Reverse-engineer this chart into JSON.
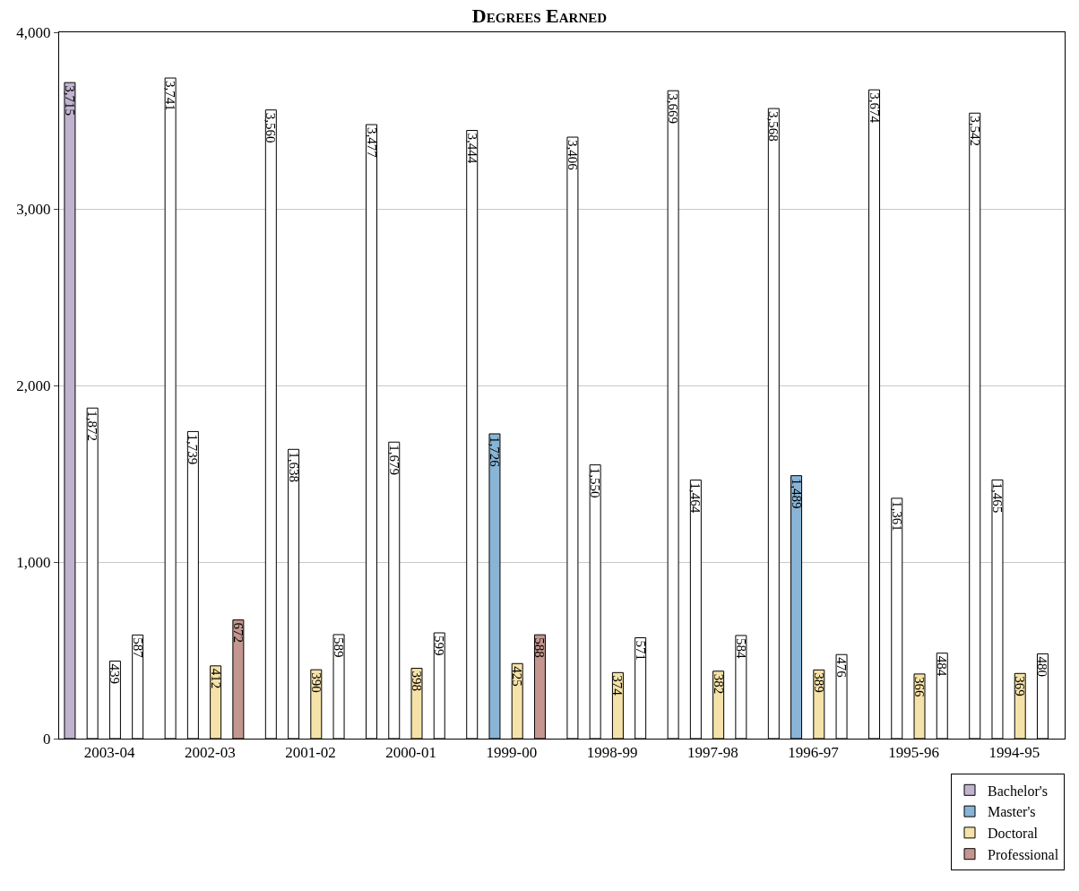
{
  "chart_data": {
    "type": "bar",
    "title": "Degrees Earned",
    "categories": [
      "2003-04",
      "2002-03",
      "2001-02",
      "2000-01",
      "1999-00",
      "1998-99",
      "1997-98",
      "1996-97",
      "1995-96",
      "1994-95"
    ],
    "series": [
      {
        "name": "Bachelor's",
        "color": "#bfb3cf",
        "colors": [
          "#bfb3cf",
          "#ffffff",
          "#ffffff",
          "#ffffff",
          "#ffffff",
          "#ffffff",
          "#ffffff",
          "#ffffff",
          "#ffffff",
          "#ffffff"
        ],
        "values": [
          3715,
          3741,
          3560,
          3477,
          3444,
          3406,
          3669,
          3568,
          3674,
          3542
        ],
        "value_labels": [
          "3,715",
          "3,741",
          "3,560",
          "3,477",
          "3,444",
          "3,406",
          "3,669",
          "3,568",
          "3,674",
          "3,542"
        ]
      },
      {
        "name": "Master's",
        "color": "#88b4d6",
        "colors": [
          "#ffffff",
          "#ffffff",
          "#ffffff",
          "#ffffff",
          "#88b4d6",
          "#ffffff",
          "#ffffff",
          "#88b4d6",
          "#ffffff",
          "#ffffff"
        ],
        "values": [
          1872,
          1739,
          1638,
          1679,
          1726,
          1550,
          1464,
          1489,
          1361,
          1465
        ],
        "value_labels": [
          "1,872",
          "1,739",
          "1,638",
          "1,679",
          "1,726",
          "1,550",
          "1,464",
          "1,489",
          "1,361",
          "1,465"
        ]
      },
      {
        "name": "Doctoral",
        "color": "#f5e2a8",
        "colors": [
          "#ffffff",
          "#f5e2a8",
          "#f5e2a8",
          "#f5e2a8",
          "#f5e2a8",
          "#f5e2a8",
          "#f5e2a8",
          "#f5e2a8",
          "#f5e2a8",
          "#f5e2a8"
        ],
        "values": [
          439,
          412,
          390,
          398,
          425,
          374,
          382,
          389,
          366,
          369
        ],
        "value_labels": [
          "439",
          "412",
          "390",
          "398",
          "425",
          "374",
          "382",
          "389",
          "366",
          "369"
        ]
      },
      {
        "name": "Professional",
        "color": "#c4968f",
        "colors": [
          "#ffffff",
          "#c4968f",
          "#ffffff",
          "#ffffff",
          "#c4968f",
          "#ffffff",
          "#ffffff",
          "#ffffff",
          "#ffffff",
          "#ffffff"
        ],
        "values": [
          587,
          672,
          589,
          599,
          588,
          571,
          584,
          476,
          484,
          480
        ],
        "value_labels": [
          "587",
          "672",
          "589",
          "599",
          "588",
          "571",
          "584",
          "476",
          "484",
          "480"
        ]
      }
    ],
    "ylim": [
      0,
      4000
    ],
    "yticks": [
      0,
      {
        "value": 1000,
        "label": "1,000"
      },
      {
        "value": 2000,
        "label": "2,000"
      },
      {
        "value": 3000,
        "label": "3,000"
      },
      {
        "value": 4000,
        "label": "4,000"
      }
    ],
    "grid": "y",
    "legend": "bottom right"
  }
}
